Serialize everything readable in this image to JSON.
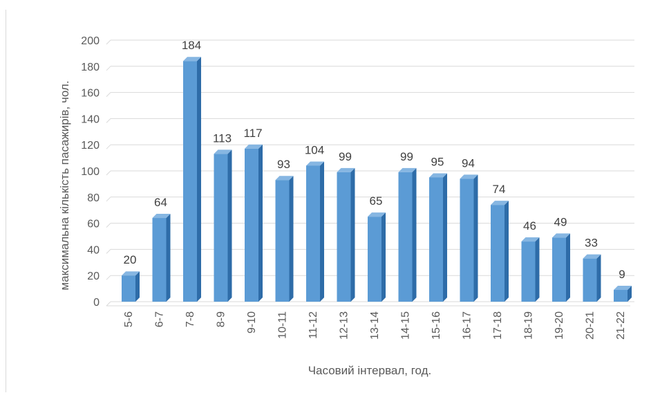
{
  "chart_data": {
    "type": "bar",
    "style": "3d-column",
    "xlabel": "Часовий інтервал, год.",
    "ylabel": "максимальна кількість пасажирів, чол.",
    "categories": [
      "5-6",
      "6-7",
      "7-8",
      "8-9",
      "9-10",
      "10-11",
      "11-12",
      "12-13",
      "13-14",
      "14-15",
      "15-16",
      "16-17",
      "17-18",
      "18-19",
      "19-20",
      "20-21",
      "21-22"
    ],
    "values": [
      20,
      64,
      184,
      113,
      117,
      93,
      104,
      99,
      65,
      99,
      95,
      94,
      74,
      46,
      49,
      33,
      9
    ],
    "value_labels": [
      "20",
      "64",
      "184",
      "113",
      "117",
      "93",
      "104",
      "99",
      "65",
      "99",
      "95",
      "94",
      "74",
      "46",
      "49",
      "33",
      "9"
    ],
    "ylim": [
      0,
      200
    ],
    "yticks": [
      "0",
      "20",
      "40",
      "60",
      "80",
      "100",
      "120",
      "140",
      "160",
      "180",
      "200"
    ],
    "grid": true,
    "legend": "none",
    "colors": {
      "bar_front": "#5b9bd5",
      "bar_side": "#2e6ca8",
      "bar_top": "#86b6e2",
      "grid": "#d9d9d9",
      "text": "#595959",
      "data_label": "#404040"
    }
  }
}
